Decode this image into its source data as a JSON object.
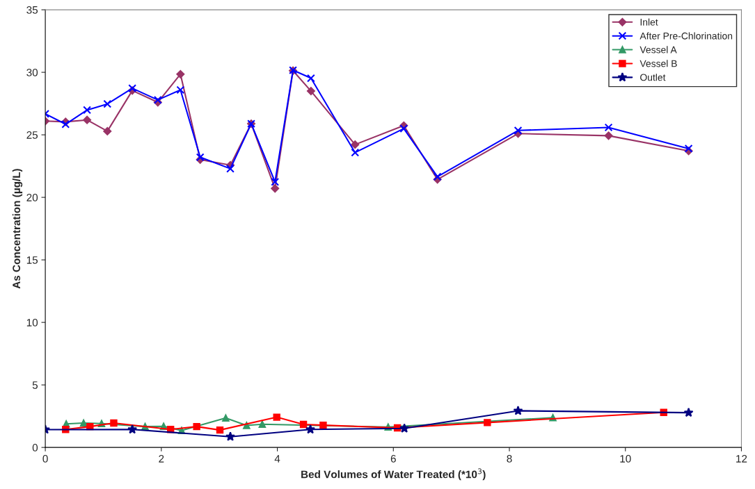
{
  "chart_data": {
    "type": "line",
    "xlabel": "Bed Volumes of Water Treated (*10$^{3}$)",
    "ylabel": "As Concentration (µg/L)",
    "xlim": [
      0,
      12
    ],
    "xticks": [
      0,
      2,
      4,
      6,
      8,
      10,
      12
    ],
    "ylim": [
      0,
      35
    ],
    "yticks": [
      0,
      5,
      10,
      15,
      20,
      25,
      30,
      35
    ],
    "grid": false,
    "legend": "top right",
    "series": [
      {
        "name": "Inlet",
        "color": "#993366",
        "marker": "diamond",
        "x": [
          0,
          0.35,
          0.72,
          1.07,
          1.5,
          1.94,
          2.33,
          2.67,
          3.19,
          3.55,
          3.96,
          4.27,
          4.58,
          5.34,
          6.18,
          6.76,
          8.15,
          9.71,
          11.09
        ],
        "values": [
          26.1,
          26.04,
          26.19,
          25.29,
          28.54,
          27.6,
          29.85,
          23.02,
          22.57,
          25.89,
          20.71,
          30.13,
          28.5,
          24.22,
          25.74,
          21.43,
          25.1,
          24.93,
          23.71
        ]
      },
      {
        "name": "After Pre-Chlorination",
        "color": "#0000ff",
        "marker": "cross",
        "x": [
          0,
          0.35,
          0.72,
          1.07,
          1.5,
          1.94,
          2.33,
          2.67,
          3.19,
          3.55,
          3.96,
          4.27,
          4.58,
          5.34,
          6.18,
          6.76,
          8.15,
          9.71,
          11.09
        ],
        "values": [
          26.68,
          25.85,
          26.98,
          27.47,
          28.72,
          27.79,
          28.59,
          23.21,
          22.29,
          25.89,
          21.24,
          30.17,
          29.53,
          23.58,
          25.5,
          21.65,
          25.35,
          25.59,
          23.9
        ]
      },
      {
        "name": "Vessel A",
        "color": "#339966",
        "marker": "triangle",
        "x": [
          0.36,
          0.66,
          0.97,
          1.72,
          2.04,
          2.35,
          3.11,
          3.47,
          3.74,
          5.91,
          8.75
        ],
        "values": [
          1.88,
          1.95,
          1.91,
          1.67,
          1.69,
          1.35,
          2.35,
          1.76,
          1.86,
          1.63,
          2.38
        ]
      },
      {
        "name": "Vessel B",
        "color": "#ff0000",
        "marker": "square",
        "x": [
          0.35,
          0.77,
          1.18,
          2.16,
          2.61,
          3.01,
          3.99,
          4.45,
          4.79,
          6.07,
          7.62,
          10.66
        ],
        "values": [
          1.44,
          1.67,
          1.95,
          1.44,
          1.67,
          1.39,
          2.42,
          1.84,
          1.78,
          1.56,
          1.99,
          2.8
        ]
      },
      {
        "name": "Outlet",
        "color": "#000080",
        "marker": "star",
        "x": [
          0,
          1.5,
          3.19,
          4.57,
          6.19,
          8.15,
          11.09
        ],
        "values": [
          1.43,
          1.44,
          0.86,
          1.44,
          1.52,
          2.93,
          2.78
        ]
      }
    ]
  }
}
